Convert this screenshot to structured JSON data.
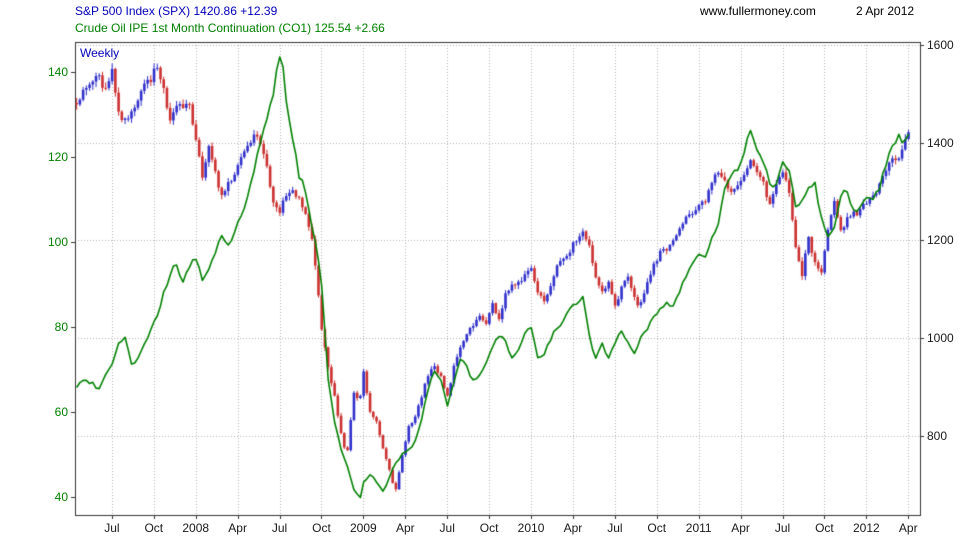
{
  "header": {
    "spx_line": "S&P 500 Index (SPX) 1420.86 +12.39",
    "co1_line": "Crude Oil IPE 1st Month Continuation (CO1) 125.54 +2.66",
    "site": "www.fullermoney.com",
    "date": "2 Apr 2012"
  },
  "chart_data": {
    "type": "candlestick+line",
    "frequency_label": "Weekly",
    "instruments": [
      {
        "symbol": "SPX",
        "name": "S&P 500 Index",
        "last": 1420.86,
        "change": "+12.39",
        "style": "candlestick",
        "axis": "right"
      },
      {
        "symbol": "CO1",
        "name": "Crude Oil IPE 1st Month Continuation",
        "last": 125.54,
        "change": "+2.66",
        "style": "line",
        "axis": "left"
      }
    ],
    "x_axis": {
      "range": [
        2007.28,
        2012.32
      ],
      "ticks": [
        {
          "t": 2007.5,
          "label": "Jul"
        },
        {
          "t": 2007.75,
          "label": "Oct"
        },
        {
          "t": 2008.0,
          "label": "2008"
        },
        {
          "t": 2008.25,
          "label": "Apr"
        },
        {
          "t": 2008.5,
          "label": "Jul"
        },
        {
          "t": 2008.75,
          "label": "Oct"
        },
        {
          "t": 2009.0,
          "label": "2009"
        },
        {
          "t": 2009.25,
          "label": "Apr"
        },
        {
          "t": 2009.5,
          "label": "Jul"
        },
        {
          "t": 2009.75,
          "label": "Oct"
        },
        {
          "t": 2010.0,
          "label": "2010"
        },
        {
          "t": 2010.25,
          "label": "Apr"
        },
        {
          "t": 2010.5,
          "label": "Jul"
        },
        {
          "t": 2010.75,
          "label": "Oct"
        },
        {
          "t": 2011.0,
          "label": "2011"
        },
        {
          "t": 2011.25,
          "label": "Apr"
        },
        {
          "t": 2011.5,
          "label": "Jul"
        },
        {
          "t": 2011.75,
          "label": "Oct"
        },
        {
          "t": 2012.0,
          "label": "2012"
        },
        {
          "t": 2012.25,
          "label": "Apr"
        }
      ],
      "label_color": "#1a1a1a"
    },
    "left_axis": {
      "ticks": [
        140,
        120,
        100,
        80,
        60,
        40
      ],
      "range": [
        35.8,
        147.1
      ],
      "color": "#008000"
    },
    "right_axis": {
      "ticks": [
        1600,
        1400,
        1200,
        1000,
        800
      ],
      "range": [
        638,
        1606
      ],
      "color": "#1a1a1a"
    },
    "grid": {
      "style": "dotted",
      "color": "#b5b5b5"
    },
    "border_color": "#333333",
    "x": [
      2007.29,
      2007.33,
      2007.38,
      2007.42,
      2007.46,
      2007.5,
      2007.54,
      2007.58,
      2007.62,
      2007.65,
      2007.69,
      2007.73,
      2007.77,
      2007.81,
      2007.85,
      2007.88,
      2007.92,
      2007.96,
      2008.0,
      2008.04,
      2008.08,
      2008.12,
      2008.15,
      2008.19,
      2008.23,
      2008.27,
      2008.31,
      2008.35,
      2008.38,
      2008.42,
      2008.46,
      2008.5,
      2008.52,
      2008.54,
      2008.58,
      2008.62,
      2008.65,
      2008.69,
      2008.73,
      2008.75,
      2008.79,
      2008.83,
      2008.87,
      2008.9,
      2008.94,
      2008.98,
      2009.0,
      2009.04,
      2009.08,
      2009.12,
      2009.15,
      2009.19,
      2009.23,
      2009.27,
      2009.31,
      2009.35,
      2009.38,
      2009.42,
      2009.46,
      2009.5,
      2009.54,
      2009.58,
      2009.62,
      2009.65,
      2009.69,
      2009.73,
      2009.77,
      2009.81,
      2009.85,
      2009.88,
      2009.92,
      2009.96,
      2010.0,
      2010.04,
      2010.08,
      2010.12,
      2010.15,
      2010.19,
      2010.23,
      2010.27,
      2010.31,
      2010.35,
      2010.38,
      2010.42,
      2010.46,
      2010.5,
      2010.54,
      2010.58,
      2010.62,
      2010.65,
      2010.69,
      2010.73,
      2010.77,
      2010.81,
      2010.85,
      2010.88,
      2010.92,
      2010.96,
      2011.0,
      2011.04,
      2011.08,
      2011.12,
      2011.15,
      2011.19,
      2011.23,
      2011.27,
      2011.31,
      2011.35,
      2011.38,
      2011.42,
      2011.46,
      2011.5,
      2011.54,
      2011.58,
      2011.62,
      2011.65,
      2011.69,
      2011.73,
      2011.77,
      2011.81,
      2011.85,
      2011.88,
      2011.92,
      2011.96,
      2012.0,
      2012.04,
      2012.08,
      2012.12,
      2012.15,
      2012.19,
      2012.23,
      2012.26
    ],
    "series": [
      {
        "name": "Crude Oil IPE 1st Month Continuation (CO1)",
        "type": "line",
        "axis": "left",
        "color": "#008000",
        "values": [
          66,
          67.5,
          67,
          65.5,
          68.5,
          71.5,
          76,
          78,
          70.5,
          72.5,
          75.5,
          79,
          82.5,
          88,
          92.5,
          95.5,
          90.5,
          94,
          96.5,
          91,
          93.5,
          98,
          101.5,
          99.5,
          102,
          106,
          110.5,
          117,
          123,
          128,
          134.5,
          144.5,
          142,
          133,
          124,
          115,
          113.5,
          104,
          97,
          90,
          68,
          57,
          51,
          48,
          42,
          39.5,
          43.5,
          45.5,
          43.5,
          41,
          44,
          48,
          50,
          51,
          53,
          59,
          64.5,
          70,
          68,
          61.5,
          67,
          72.5,
          71,
          67,
          68.5,
          71,
          75.5,
          78,
          76.5,
          72,
          74.5,
          78,
          80.5,
          72.5,
          74,
          77.5,
          79.5,
          81,
          84,
          85.5,
          87.5,
          78,
          72,
          76.5,
          72.5,
          76.5,
          79,
          76.5,
          74,
          77.5,
          79,
          82.5,
          84,
          85.5,
          85,
          88,
          92,
          94.5,
          97.5,
          96.5,
          101,
          104,
          112,
          115.5,
          117,
          121,
          126.5,
          121,
          119,
          114.5,
          113,
          118.5,
          117,
          108.5,
          110,
          112.5,
          114.5,
          106,
          101,
          104,
          111,
          112.5,
          107.5,
          108,
          111,
          110.5,
          113,
          119,
          122.5,
          125,
          123.5,
          125.54
        ]
      },
      {
        "name": "S&P 500 Index (SPX)",
        "type": "candlestick",
        "axis": "right",
        "up_color": "#3030cc",
        "down_color": "#cc3030",
        "values": [
          1484,
          1505,
          1523,
          1536,
          1503,
          1552,
          1458,
          1445,
          1465,
          1482,
          1517,
          1526,
          1561,
          1504,
          1440,
          1481,
          1468,
          1478,
          1411,
          1330,
          1395,
          1331,
          1288,
          1315,
          1330,
          1370,
          1388,
          1425,
          1400,
          1360,
          1280,
          1260,
          1278,
          1293,
          1298,
          1282,
          1255,
          1213,
          1099,
          1020,
          940,
          876,
          800,
          750,
          888,
          872,
          931,
          850,
          826,
          770,
          735,
          683,
          757,
          816,
          843,
          883,
          919,
          946,
          923,
          879,
          940,
          987,
          1010,
          1026,
          1043,
          1025,
          1071,
          1036,
          1091,
          1106,
          1115,
          1126,
          1145,
          1092,
          1075,
          1109,
          1150,
          1166,
          1178,
          1202,
          1217,
          1187,
          1136,
          1091,
          1117,
          1065,
          1102,
          1125,
          1079,
          1064,
          1109,
          1146,
          1176,
          1183,
          1199,
          1224,
          1244,
          1258,
          1271,
          1283,
          1319,
          1343,
          1320,
          1304,
          1313,
          1329,
          1363,
          1340,
          1331,
          1271,
          1316,
          1345,
          1292,
          1179,
          1124,
          1216,
          1155,
          1131,
          1224,
          1285,
          1216,
          1244,
          1255,
          1258,
          1278,
          1289,
          1316,
          1343,
          1366,
          1370,
          1404,
          1421
        ]
      }
    ]
  }
}
